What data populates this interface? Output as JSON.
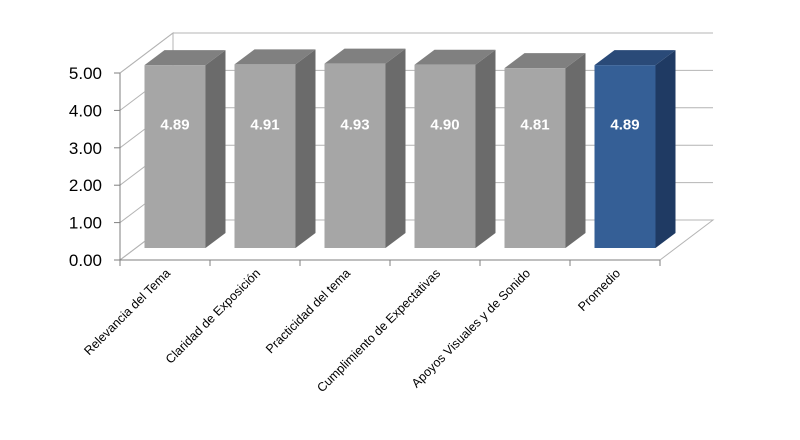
{
  "chart_data": {
    "type": "bar",
    "three_d": true,
    "categories": [
      "Relevancia del Tema",
      "Claridad de Exposición",
      "Practicidad del tema",
      "Cumplimiento de Expectativas",
      "Apoyos Visuales y de Sonido",
      "Promedio"
    ],
    "values": [
      4.89,
      4.91,
      4.93,
      4.9,
      4.81,
      4.89
    ],
    "data_labels": [
      "4.89",
      "4.91",
      "4.93",
      "4.90",
      "4.81",
      "4.89"
    ],
    "yticks": [
      "0.00",
      "1.00",
      "2.00",
      "3.00",
      "4.00",
      "5.00"
    ],
    "ylim": [
      0,
      5
    ],
    "grid": true,
    "legend": "none",
    "colors": {
      "bar_front": "#a6a6a6",
      "bar_side": "#6b6b6b",
      "bar_top": "#808080",
      "highlight_front": "#355f96",
      "highlight_side": "#1f3a63",
      "highlight_top": "#2a4a78",
      "grid": "#b4b4b4",
      "axis": "#7f7f7f"
    }
  }
}
